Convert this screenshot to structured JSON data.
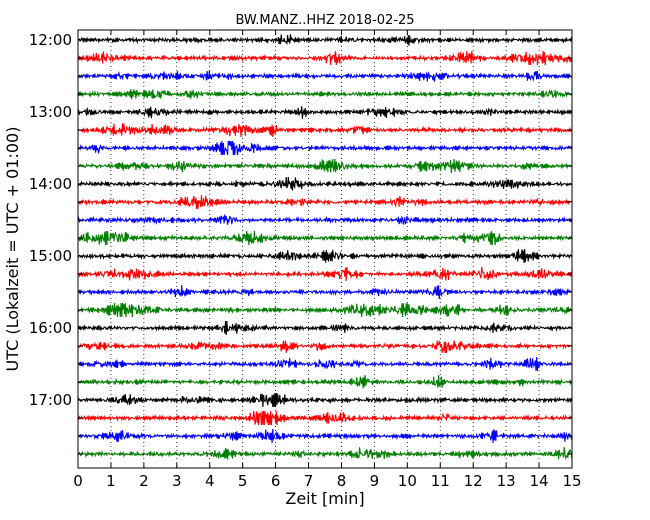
{
  "chart_data": {
    "type": "line",
    "title": "BW.MANZ..HHZ 2018-02-25",
    "xlabel": "Zeit  [min]",
    "ylabel": "UTC (Lokalzeit = UTC + 01:00)",
    "xlim": [
      0,
      15
    ],
    "x_ticks": [
      "0",
      "1",
      "2",
      "3",
      "4",
      "5",
      "6",
      "7",
      "8",
      "9",
      "10",
      "11",
      "12",
      "13",
      "14",
      "15"
    ],
    "y_ticks": [
      "12:00",
      "13:00",
      "14:00",
      "15:00",
      "16:00",
      "17:00"
    ],
    "grid": "vertical dotted at each minute",
    "trace_colors": [
      "#000000",
      "#ff0000",
      "#0000ff",
      "#007f00"
    ],
    "traces": [
      {
        "start": "12:00",
        "color": "#000000"
      },
      {
        "start": "12:15",
        "color": "#ff0000"
      },
      {
        "start": "12:30",
        "color": "#0000ff"
      },
      {
        "start": "12:45",
        "color": "#007f00"
      },
      {
        "start": "13:00",
        "color": "#000000"
      },
      {
        "start": "13:15",
        "color": "#ff0000"
      },
      {
        "start": "13:30",
        "color": "#0000ff"
      },
      {
        "start": "13:45",
        "color": "#007f00"
      },
      {
        "start": "14:00",
        "color": "#000000"
      },
      {
        "start": "14:15",
        "color": "#ff0000"
      },
      {
        "start": "14:30",
        "color": "#0000ff"
      },
      {
        "start": "14:45",
        "color": "#007f00"
      },
      {
        "start": "15:00",
        "color": "#000000"
      },
      {
        "start": "15:15",
        "color": "#ff0000"
      },
      {
        "start": "15:30",
        "color": "#0000ff"
      },
      {
        "start": "15:45",
        "color": "#007f00"
      },
      {
        "start": "16:00",
        "color": "#000000"
      },
      {
        "start": "16:15",
        "color": "#ff0000"
      },
      {
        "start": "16:30",
        "color": "#0000ff"
      },
      {
        "start": "16:45",
        "color": "#007f00"
      },
      {
        "start": "17:00",
        "color": "#000000"
      },
      {
        "start": "17:15",
        "color": "#ff0000"
      },
      {
        "start": "17:30",
        "color": "#0000ff"
      },
      {
        "start": "17:45",
        "color": "#007f00"
      }
    ]
  }
}
